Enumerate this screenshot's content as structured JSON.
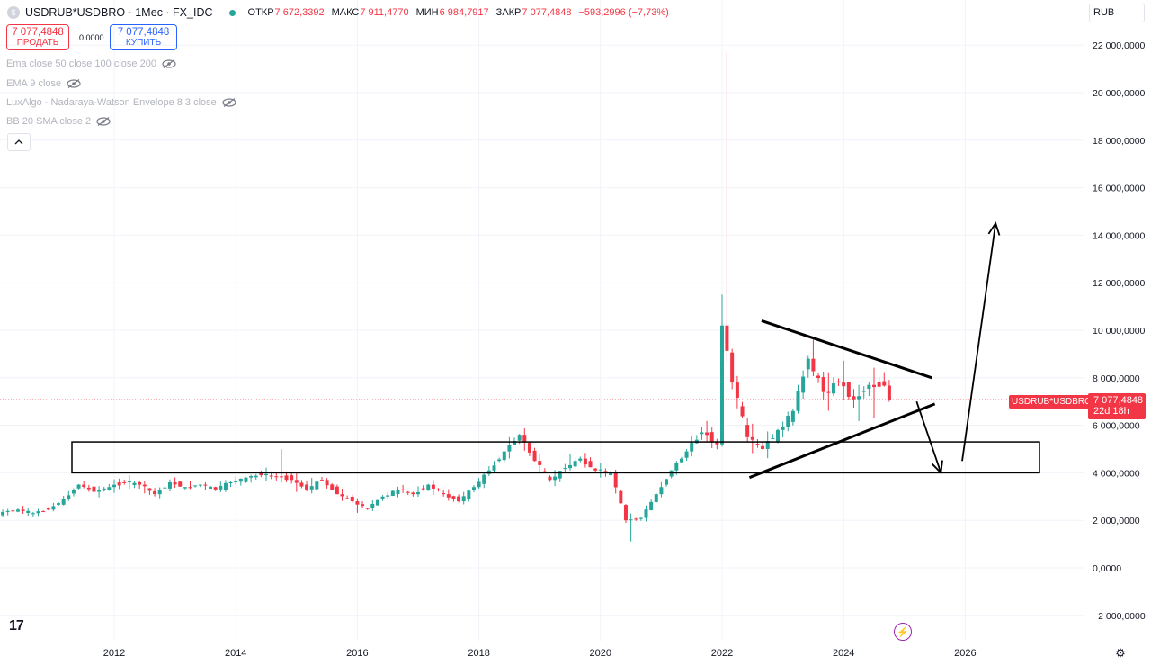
{
  "header": {
    "symbol_title": "USDRUB*USDBRO · 1Мес · FX_IDC",
    "ohlc": [
      {
        "key": "ОТКР",
        "value": "7 672,3392"
      },
      {
        "key": "МАКС",
        "value": "7 911,4770"
      },
      {
        "key": "МИН",
        "value": "6 984,7917"
      },
      {
        "key": "ЗАКР",
        "value": "7 077,4848"
      },
      {
        "key": "",
        "value": "−593,2996 (−7,73%)"
      }
    ]
  },
  "trade": {
    "sell_price": "7 077,4848",
    "sell_label": "ПРОДАТЬ",
    "spread": "0,0000",
    "buy_price": "7 077,4848",
    "buy_label": "КУПИТЬ"
  },
  "indicators": [
    "Ema close 50 close 100 close 200",
    "EMA 9 close",
    "LuxAlgo - Nadaraya-Watson Envelope 8 3 close",
    "BB 20 SMA close 2"
  ],
  "currency": "RUB",
  "last_price": {
    "symbol": "USDRUB*USDBRO",
    "price": "7 077,4848",
    "countdown": "22d 18h"
  },
  "colors": {
    "up": "#26a69a",
    "down": "#f23645",
    "grid": "#f0f3fa",
    "annotation": "#000000"
  },
  "icons": {
    "eye": "eye-crossed-icon",
    "collapse": "chevron-up-icon",
    "bolt": "lightning-icon",
    "settings": "gear-icon",
    "logo": "tradingview-logo"
  },
  "chart_data": {
    "type": "candlestick",
    "interval": "monthly",
    "y_ticks": [
      "22 000,0000",
      "20 000,0000",
      "18 000,0000",
      "16 000,0000",
      "14 000,0000",
      "12 000,0000",
      "10 000,0000",
      "8 000,0000",
      "6 000,0000",
      "4 000,0000",
      "2 000,0000",
      "0,0000",
      "−2 000,0000"
    ],
    "x_ticks": [
      "2012",
      "2014",
      "2016",
      "2018",
      "2020",
      "2022",
      "2024",
      "2026"
    ],
    "ylim": [
      -2500,
      23000
    ],
    "xlim": [
      2010.0,
      2027.15
    ],
    "candles": [
      [
        2010.0,
        2200,
        2400,
        2150,
        2350
      ],
      [
        2010.25,
        2350,
        2500,
        2300,
        2450
      ],
      [
        2010.5,
        2450,
        2550,
        2200,
        2300
      ],
      [
        2010.75,
        2300,
        2500,
        2250,
        2450
      ],
      [
        2011.0,
        2450,
        3000,
        2400,
        2900
      ],
      [
        2011.25,
        2900,
        3600,
        2850,
        3500
      ],
      [
        2011.5,
        3500,
        3650,
        3150,
        3200
      ],
      [
        2011.75,
        3200,
        3500,
        3100,
        3400
      ],
      [
        2012.0,
        3400,
        3700,
        3300,
        3600
      ],
      [
        2012.25,
        3600,
        3800,
        3300,
        3500
      ],
      [
        2012.5,
        3500,
        3600,
        2900,
        3100
      ],
      [
        2012.75,
        3100,
        3700,
        3050,
        3600
      ],
      [
        2013.0,
        3600,
        3650,
        3300,
        3400
      ],
      [
        2013.25,
        3400,
        3600,
        3350,
        3500
      ],
      [
        2013.5,
        3500,
        3550,
        3250,
        3300
      ],
      [
        2013.75,
        3300,
        3700,
        3250,
        3600
      ],
      [
        2014.0,
        3600,
        3900,
        3550,
        3800
      ],
      [
        2014.25,
        3800,
        3950,
        3700,
        3900
      ],
      [
        2014.5,
        3900,
        4000,
        3750,
        3850
      ],
      [
        2014.75,
        3850,
        4900,
        3600,
        3700
      ],
      [
        2015.0,
        3700,
        4000,
        3100,
        3300
      ],
      [
        2015.25,
        3300,
        3900,
        3250,
        3700
      ],
      [
        2015.5,
        3700,
        3750,
        3000,
        3100
      ],
      [
        2015.75,
        3100,
        3300,
        2700,
        2800
      ],
      [
        2016.0,
        2800,
        2900,
        2200,
        2500
      ],
      [
        2016.25,
        2500,
        3100,
        2450,
        3000
      ],
      [
        2016.5,
        3000,
        3400,
        2950,
        3300
      ],
      [
        2016.75,
        3300,
        3400,
        3000,
        3100
      ],
      [
        2017.0,
        3100,
        3600,
        3050,
        3500
      ],
      [
        2017.25,
        3500,
        3600,
        3000,
        3100
      ],
      [
        2017.5,
        3100,
        3200,
        2700,
        2800
      ],
      [
        2017.75,
        2800,
        3500,
        2750,
        3400
      ],
      [
        2018.0,
        3400,
        4200,
        3350,
        4100
      ],
      [
        2018.25,
        4100,
        5000,
        4000,
        4900
      ],
      [
        2018.5,
        4900,
        5700,
        4800,
        5600
      ],
      [
        2018.75,
        5600,
        5800,
        4300,
        4500
      ],
      [
        2019.0,
        4500,
        4700,
        3500,
        3700
      ],
      [
        2019.25,
        3700,
        4300,
        3600,
        4200
      ],
      [
        2019.5,
        4200,
        4900,
        4100,
        4600
      ],
      [
        2019.75,
        4600,
        4700,
        4000,
        4100
      ],
      [
        2020.0,
        4100,
        4300,
        3800,
        4000
      ],
      [
        2020.25,
        4000,
        4100,
        1800,
        2000
      ],
      [
        2020.5,
        2000,
        2300,
        1200,
        2100
      ],
      [
        2020.75,
        2100,
        3200,
        2000,
        3100
      ],
      [
        2021.0,
        3100,
        4200,
        3000,
        4100
      ],
      [
        2021.25,
        4100,
        5000,
        4000,
        4900
      ],
      [
        2021.5,
        4900,
        5800,
        4800,
        5700
      ],
      [
        2021.75,
        5700,
        6100,
        5000,
        5200
      ],
      [
        2022.0,
        5200,
        11500,
        5100,
        10200
      ],
      [
        2022.08,
        10200,
        21300,
        7600,
        7800
      ],
      [
        2022.25,
        7800,
        7900,
        5200,
        5500
      ],
      [
        2022.5,
        5500,
        6000,
        4700,
        5000
      ],
      [
        2022.75,
        5000,
        6200,
        4800,
        5800
      ],
      [
        2023.0,
        5800,
        6800,
        5500,
        6600
      ],
      [
        2023.25,
        6600,
        8900,
        6500,
        8800
      ],
      [
        2023.5,
        8800,
        9300,
        7200,
        7400
      ],
      [
        2023.75,
        7400,
        8300,
        6700,
        7800
      ],
      [
        2024.0,
        7800,
        8600,
        6900,
        7100
      ],
      [
        2024.25,
        7100,
        8100,
        6300,
        7700
      ],
      [
        2024.5,
        7700,
        8300,
        6700,
        7900
      ],
      [
        2024.75,
        7670,
        7911,
        6985,
        7077
      ]
    ],
    "last_close": 7077.4848,
    "annotations": {
      "support_zone": {
        "from": 4000,
        "to": 5300
      },
      "triangle_upper": [
        [
          2022.65,
          10400
        ],
        [
          2025.45,
          8000
        ]
      ],
      "triangle_lower": [
        [
          2022.45,
          3800
        ],
        [
          2025.5,
          6900
        ]
      ],
      "arrow_down": [
        [
          2025.2,
          7000
        ],
        [
          2025.6,
          4000
        ]
      ],
      "arrow_up": [
        [
          2025.95,
          4500
        ],
        [
          2026.5,
          14500
        ]
      ]
    }
  }
}
